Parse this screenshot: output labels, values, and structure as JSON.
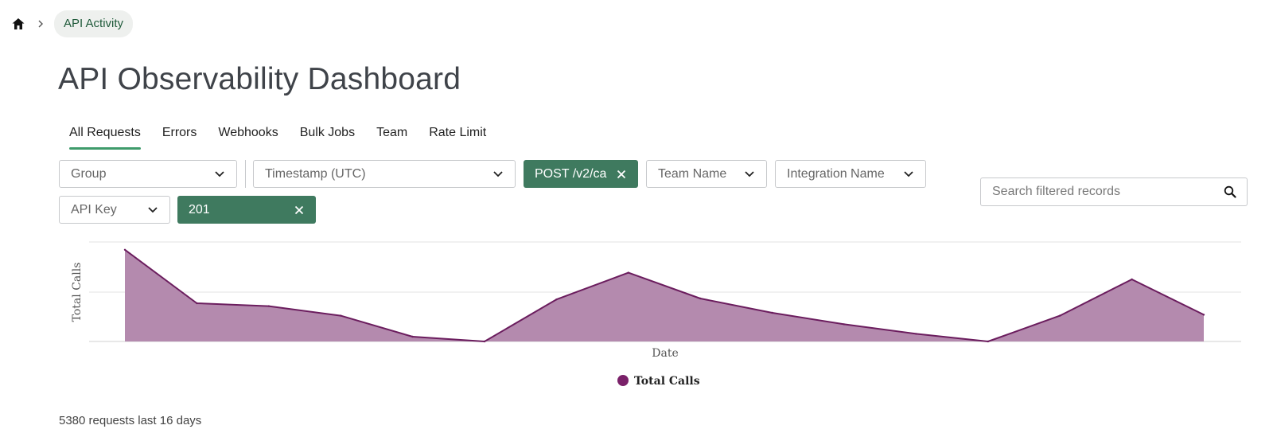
{
  "breadcrumb": {
    "current": "API Activity"
  },
  "page": {
    "title": "API Observability Dashboard"
  },
  "tabs": [
    {
      "label": "All Requests",
      "active": true
    },
    {
      "label": "Errors",
      "active": false
    },
    {
      "label": "Webhooks",
      "active": false
    },
    {
      "label": "Bulk Jobs",
      "active": false
    },
    {
      "label": "Team",
      "active": false
    },
    {
      "label": "Rate Limit",
      "active": false
    }
  ],
  "filters": {
    "group": "Group",
    "timestamp": "Timestamp (UTC)",
    "endpoint_chip": "POST /v2/ca",
    "team_name": "Team Name",
    "integration_name": "Integration Name",
    "api_key": "API Key",
    "status_chip": "201"
  },
  "search": {
    "placeholder": "Search filtered records",
    "value": ""
  },
  "colors": {
    "accent": "#3f7a5f",
    "tab_underline": "#3f9b6b",
    "series": "#6b1d5e",
    "series_fill": "#b48aae"
  },
  "chart_data": {
    "type": "area",
    "xlabel": "Date",
    "ylabel": "Total Calls",
    "grid": true,
    "legend": "bottom-center",
    "ylim": [
      0,
      1
    ],
    "series": [
      {
        "name": "Total Calls",
        "values": [
          0.96,
          0.4,
          0.37,
          0.27,
          0.05,
          0.0,
          0.44,
          0.72,
          0.45,
          0.3,
          0.18,
          0.08,
          0.0,
          0.27,
          0.65,
          0.28
        ]
      }
    ]
  },
  "footer": {
    "summary": "5380 requests last 16 days"
  }
}
